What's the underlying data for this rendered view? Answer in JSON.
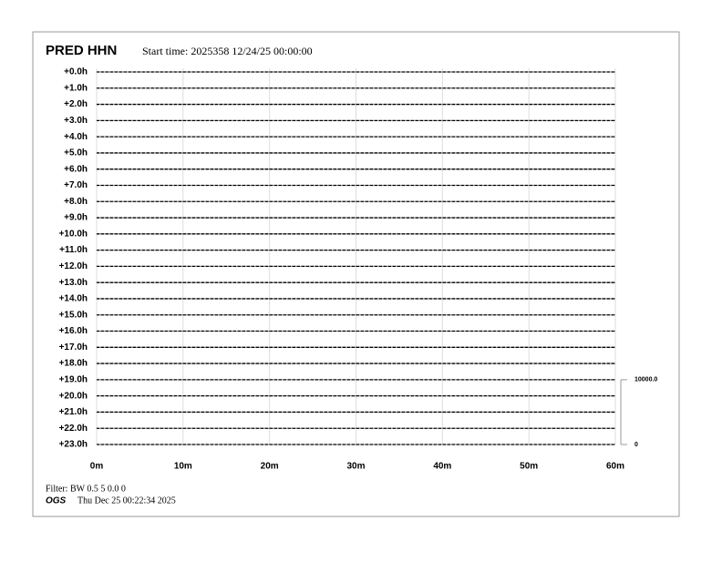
{
  "chart_data": {
    "type": "helicorder",
    "title": "PRED HHN",
    "subtitle": "Start time: 2025358 12/24/25 00:00:00",
    "categories": [
      "+0.0h",
      "+1.0h",
      "+2.0h",
      "+3.0h",
      "+4.0h",
      "+5.0h",
      "+6.0h",
      "+7.0h",
      "+8.0h",
      "+9.0h",
      "+10.0h",
      "+11.0h",
      "+12.0h",
      "+13.0h",
      "+14.0h",
      "+15.0h",
      "+16.0h",
      "+17.0h",
      "+18.0h",
      "+19.0h",
      "+20.0h",
      "+21.0h",
      "+22.0h",
      "+23.0h"
    ],
    "xlim": [
      0,
      60
    ],
    "xticks": [
      {
        "value": 0,
        "label": "0m"
      },
      {
        "value": 10,
        "label": "10m"
      },
      {
        "value": 20,
        "label": "20m"
      },
      {
        "value": 30,
        "label": "30m"
      },
      {
        "value": 40,
        "label": "40m"
      },
      {
        "value": 50,
        "label": "50m"
      },
      {
        "value": 60,
        "label": "60m"
      }
    ],
    "grid": true,
    "color": "#000000",
    "y2lim": [
      0,
      10000
    ],
    "y2ticks": [
      {
        "value": 10000,
        "label": "10000.0"
      },
      0
    ]
  },
  "footer": {
    "filter": "Filter: BW 0.5 5 0.0 0",
    "org": "OGS",
    "timestamp": "Thu Dec 25 00:22:34 2025"
  }
}
